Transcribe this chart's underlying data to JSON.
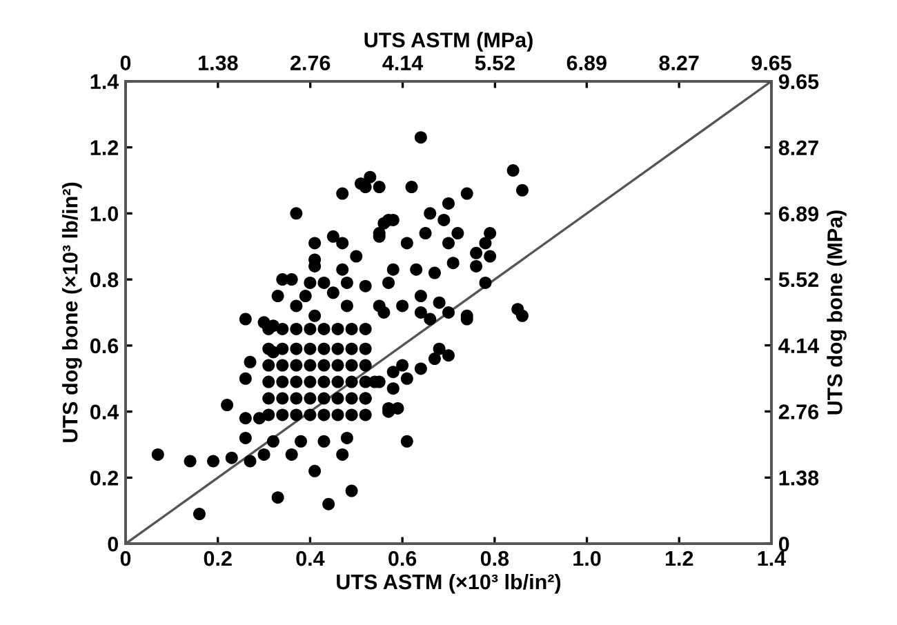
{
  "chart_data": {
    "type": "scatter",
    "xlabel": "UTS ASTM (×10³ lb/in²)",
    "ylabel": "UTS dog bone (×10³ lb/in²)",
    "x2label": "UTS ASTM (MPa)",
    "y2label": "UTS dog bone (MPa)",
    "xlim": [
      0,
      1.4
    ],
    "ylim": [
      0,
      1.4
    ],
    "x2lim": [
      0,
      9.65
    ],
    "y2lim": [
      0,
      9.65
    ],
    "xticks": [
      0,
      0.2,
      0.4,
      0.6,
      0.8,
      {
        "value": 1,
        "label": "1.0"
      },
      1.2,
      1.4
    ],
    "yticks": [
      0,
      0.2,
      0.4,
      0.6,
      0.8,
      {
        "value": 1,
        "label": "1.0"
      },
      1.2,
      1.4
    ],
    "x2ticks": [
      0,
      1.38,
      2.76,
      4.14,
      5.52,
      6.89,
      8.27,
      9.65
    ],
    "y2ticks": [
      0,
      1.38,
      2.76,
      4.14,
      5.52,
      6.89,
      8.27,
      9.65
    ],
    "grid": false,
    "series": [
      {
        "type": "line",
        "color": "#555555",
        "marker": "none",
        "line_style": "solid",
        "x": [
          0,
          1.4
        ],
        "values": [
          0,
          1.4
        ]
      },
      {
        "color": "#000000",
        "marker": "circle",
        "x": [
          0.53,
          0.51,
          0.55,
          0.52,
          0.47,
          0.37,
          0.57,
          0.41,
          0.45,
          0.47,
          0.55,
          0.5,
          0.41,
          0.41,
          0.47,
          0.34,
          0.36,
          0.4,
          0.43,
          0.48,
          0.33,
          0.39,
          0.45,
          0.52,
          0.37,
          0.26,
          0.3,
          0.32,
          0.41,
          0.48,
          0.55,
          0.64,
          0.84,
          0.86,
          0.62,
          0.74,
          0.7,
          0.66,
          0.69,
          0.58,
          0.56,
          0.65,
          0.72,
          0.79,
          0.7,
          0.78,
          0.76,
          0.79,
          0.61,
          0.55,
          0.71,
          0.76,
          0.67,
          0.58,
          0.63,
          0.78,
          0.57,
          0.64,
          0.68,
          0.7,
          0.74,
          0.85,
          0.6,
          0.64,
          0.56,
          0.66,
          0.07,
          0.14,
          0.19,
          0.23,
          0.16,
          0.33,
          0.44,
          0.49,
          0.41,
          0.47,
          0.48,
          0.27,
          0.3,
          0.36,
          0.26,
          0.22,
          0.26,
          0.29,
          0.26,
          0.27,
          0.32,
          0.32,
          0.38,
          0.43,
          0.57,
          0.52,
          0.54,
          0.74,
          0.86,
          0.7,
          0.68,
          0.67,
          0.61,
          0.58,
          0.55,
          0.6,
          0.57,
          0.59,
          0.61,
          0.58,
          0.64,
          0.31,
          0.34,
          0.37,
          0.4,
          0.43,
          0.46,
          0.49,
          0.52,
          0.31,
          0.34,
          0.37,
          0.4,
          0.43,
          0.46,
          0.49,
          0.52,
          0.31,
          0.34,
          0.37,
          0.4,
          0.43,
          0.46,
          0.49,
          0.52,
          0.31,
          0.34,
          0.37,
          0.4,
          0.43,
          0.46,
          0.49,
          0.52,
          0.31,
          0.34,
          0.37,
          0.4,
          0.43,
          0.46,
          0.49,
          0.52,
          0.31,
          0.34,
          0.37,
          0.4,
          0.43,
          0.46,
          0.49,
          0.52
        ],
        "values": [
          1.11,
          1.09,
          1.08,
          1.08,
          1.06,
          1.0,
          0.98,
          0.91,
          0.93,
          0.91,
          0.93,
          0.87,
          0.86,
          0.84,
          0.83,
          0.8,
          0.8,
          0.79,
          0.79,
          0.79,
          0.75,
          0.75,
          0.76,
          0.78,
          0.72,
          0.68,
          0.67,
          0.66,
          0.69,
          0.72,
          0.72,
          1.23,
          1.13,
          1.07,
          1.08,
          1.06,
          1.03,
          1.0,
          0.98,
          0.98,
          0.97,
          0.94,
          0.94,
          0.94,
          0.91,
          0.91,
          0.88,
          0.87,
          0.91,
          0.94,
          0.85,
          0.84,
          0.82,
          0.83,
          0.83,
          0.79,
          0.79,
          0.75,
          0.73,
          0.7,
          0.69,
          0.71,
          0.72,
          0.7,
          0.7,
          0.68,
          0.27,
          0.25,
          0.25,
          0.26,
          0.09,
          0.14,
          0.12,
          0.16,
          0.22,
          0.27,
          0.32,
          0.25,
          0.27,
          0.27,
          0.32,
          0.42,
          0.38,
          0.38,
          0.5,
          0.55,
          0.58,
          0.31,
          0.31,
          0.31,
          0.4,
          0.44,
          0.49,
          0.68,
          0.69,
          0.57,
          0.59,
          0.56,
          0.5,
          0.47,
          0.49,
          0.54,
          0.41,
          0.41,
          0.31,
          0.52,
          0.53,
          0.65,
          0.65,
          0.65,
          0.65,
          0.65,
          0.65,
          0.65,
          0.65,
          0.59,
          0.59,
          0.59,
          0.59,
          0.59,
          0.59,
          0.59,
          0.59,
          0.54,
          0.54,
          0.54,
          0.54,
          0.54,
          0.54,
          0.54,
          0.54,
          0.49,
          0.49,
          0.49,
          0.49,
          0.49,
          0.49,
          0.49,
          0.49,
          0.44,
          0.44,
          0.44,
          0.44,
          0.44,
          0.44,
          0.44,
          0.44,
          0.39,
          0.39,
          0.39,
          0.39,
          0.39,
          0.39,
          0.39,
          0.39
        ]
      }
    ]
  }
}
